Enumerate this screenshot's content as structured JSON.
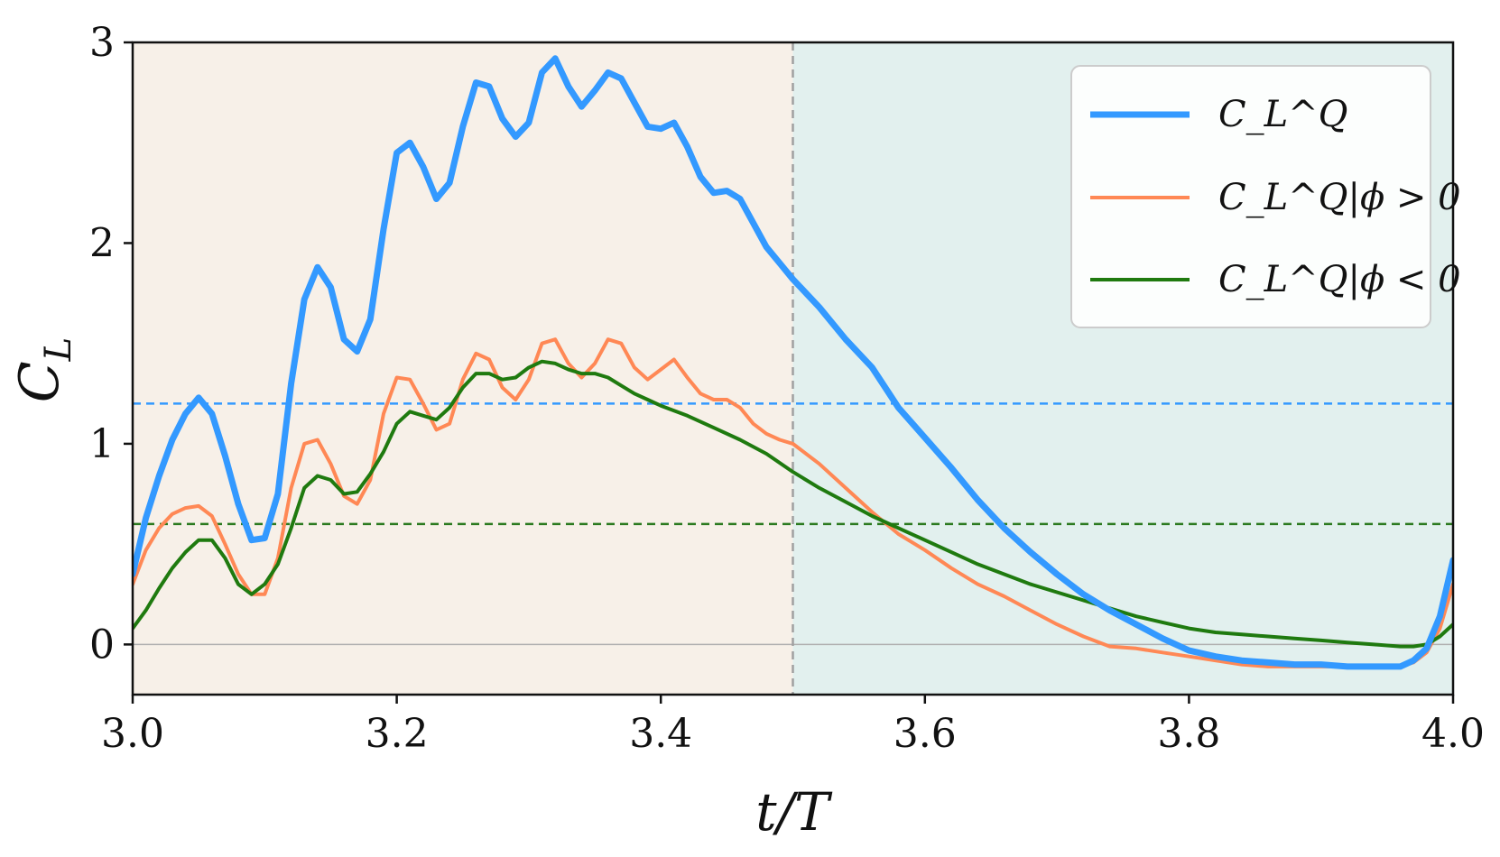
{
  "chart_data": {
    "type": "line",
    "xlabel": "t/T",
    "ylabel": "C_L",
    "xlim": [
      3.0,
      4.0
    ],
    "ylim": [
      -0.25,
      3.0
    ],
    "xticks": [
      3.0,
      3.2,
      3.4,
      3.6,
      3.8,
      4.0
    ],
    "xtick_labels": [
      "3.0",
      "3.2",
      "3.4",
      "3.6",
      "3.8",
      "4.0"
    ],
    "yticks": [
      0,
      1,
      2,
      3
    ],
    "ytick_labels": [
      "0",
      "1",
      "2",
      "3"
    ],
    "grid": false,
    "legend_position": "top-right",
    "shaded_regions": [
      {
        "x": [
          3.0,
          3.5
        ],
        "color": "#f7f0e8"
      },
      {
        "x": [
          3.5,
          4.0
        ],
        "color": "#e2f0ee"
      }
    ],
    "vertical_lines": [
      {
        "x": 3.5,
        "color": "#a0a0a0",
        "style": "dashed"
      }
    ],
    "horizontal_lines": [
      {
        "y": 1.2,
        "color": "#3399ff",
        "style": "dashed"
      },
      {
        "y": 0.6,
        "color": "#2b7a1f",
        "style": "dashed"
      },
      {
        "y": 0.0,
        "color": "#b0b0b0",
        "style": "solid"
      }
    ],
    "series": [
      {
        "name": "C_L^Q",
        "color": "#3399ff",
        "width": 7,
        "points": [
          [
            3.0,
            0.35
          ],
          [
            3.01,
            0.63
          ],
          [
            3.02,
            0.84
          ],
          [
            3.03,
            1.02
          ],
          [
            3.04,
            1.15
          ],
          [
            3.05,
            1.23
          ],
          [
            3.06,
            1.15
          ],
          [
            3.07,
            0.94
          ],
          [
            3.08,
            0.7
          ],
          [
            3.09,
            0.52
          ],
          [
            3.1,
            0.53
          ],
          [
            3.11,
            0.75
          ],
          [
            3.12,
            1.3
          ],
          [
            3.13,
            1.72
          ],
          [
            3.14,
            1.88
          ],
          [
            3.15,
            1.78
          ],
          [
            3.16,
            1.52
          ],
          [
            3.17,
            1.46
          ],
          [
            3.18,
            1.62
          ],
          [
            3.19,
            2.07
          ],
          [
            3.2,
            2.45
          ],
          [
            3.21,
            2.5
          ],
          [
            3.22,
            2.38
          ],
          [
            3.23,
            2.22
          ],
          [
            3.24,
            2.3
          ],
          [
            3.25,
            2.58
          ],
          [
            3.26,
            2.8
          ],
          [
            3.27,
            2.78
          ],
          [
            3.28,
            2.62
          ],
          [
            3.29,
            2.53
          ],
          [
            3.3,
            2.6
          ],
          [
            3.31,
            2.85
          ],
          [
            3.32,
            2.92
          ],
          [
            3.33,
            2.78
          ],
          [
            3.34,
            2.68
          ],
          [
            3.35,
            2.76
          ],
          [
            3.36,
            2.85
          ],
          [
            3.37,
            2.82
          ],
          [
            3.38,
            2.7
          ],
          [
            3.39,
            2.58
          ],
          [
            3.4,
            2.57
          ],
          [
            3.41,
            2.6
          ],
          [
            3.42,
            2.48
          ],
          [
            3.43,
            2.33
          ],
          [
            3.44,
            2.25
          ],
          [
            3.45,
            2.26
          ],
          [
            3.46,
            2.22
          ],
          [
            3.47,
            2.1
          ],
          [
            3.48,
            1.98
          ],
          [
            3.49,
            1.9
          ],
          [
            3.5,
            1.82
          ],
          [
            3.52,
            1.68
          ],
          [
            3.54,
            1.52
          ],
          [
            3.56,
            1.38
          ],
          [
            3.58,
            1.18
          ],
          [
            3.6,
            1.03
          ],
          [
            3.62,
            0.88
          ],
          [
            3.64,
            0.72
          ],
          [
            3.66,
            0.58
          ],
          [
            3.68,
            0.46
          ],
          [
            3.7,
            0.35
          ],
          [
            3.72,
            0.25
          ],
          [
            3.74,
            0.17
          ],
          [
            3.76,
            0.1
          ],
          [
            3.78,
            0.03
          ],
          [
            3.8,
            -0.03
          ],
          [
            3.82,
            -0.06
          ],
          [
            3.84,
            -0.08
          ],
          [
            3.86,
            -0.09
          ],
          [
            3.88,
            -0.1
          ],
          [
            3.9,
            -0.1
          ],
          [
            3.92,
            -0.11
          ],
          [
            3.94,
            -0.11
          ],
          [
            3.96,
            -0.11
          ],
          [
            3.97,
            -0.08
          ],
          [
            3.98,
            -0.02
          ],
          [
            3.99,
            0.14
          ],
          [
            4.0,
            0.42
          ]
        ]
      },
      {
        "name": "C_L^Q|ϕ > 0",
        "color": "#ff8855",
        "width": 4,
        "points": [
          [
            3.0,
            0.3
          ],
          [
            3.01,
            0.47
          ],
          [
            3.02,
            0.58
          ],
          [
            3.03,
            0.65
          ],
          [
            3.04,
            0.68
          ],
          [
            3.05,
            0.69
          ],
          [
            3.06,
            0.64
          ],
          [
            3.07,
            0.5
          ],
          [
            3.08,
            0.35
          ],
          [
            3.09,
            0.25
          ],
          [
            3.1,
            0.25
          ],
          [
            3.11,
            0.43
          ],
          [
            3.12,
            0.78
          ],
          [
            3.13,
            1.0
          ],
          [
            3.14,
            1.02
          ],
          [
            3.15,
            0.9
          ],
          [
            3.16,
            0.74
          ],
          [
            3.17,
            0.7
          ],
          [
            3.18,
            0.82
          ],
          [
            3.19,
            1.15
          ],
          [
            3.2,
            1.33
          ],
          [
            3.21,
            1.32
          ],
          [
            3.22,
            1.2
          ],
          [
            3.23,
            1.07
          ],
          [
            3.24,
            1.1
          ],
          [
            3.25,
            1.32
          ],
          [
            3.26,
            1.45
          ],
          [
            3.27,
            1.42
          ],
          [
            3.28,
            1.28
          ],
          [
            3.29,
            1.22
          ],
          [
            3.3,
            1.32
          ],
          [
            3.31,
            1.5
          ],
          [
            3.32,
            1.52
          ],
          [
            3.33,
            1.4
          ],
          [
            3.34,
            1.33
          ],
          [
            3.35,
            1.4
          ],
          [
            3.36,
            1.52
          ],
          [
            3.37,
            1.5
          ],
          [
            3.38,
            1.38
          ],
          [
            3.39,
            1.32
          ],
          [
            3.4,
            1.37
          ],
          [
            3.41,
            1.42
          ],
          [
            3.42,
            1.33
          ],
          [
            3.43,
            1.25
          ],
          [
            3.44,
            1.22
          ],
          [
            3.45,
            1.22
          ],
          [
            3.46,
            1.18
          ],
          [
            3.47,
            1.1
          ],
          [
            3.48,
            1.05
          ],
          [
            3.49,
            1.02
          ],
          [
            3.5,
            1.0
          ],
          [
            3.52,
            0.9
          ],
          [
            3.54,
            0.78
          ],
          [
            3.56,
            0.66
          ],
          [
            3.58,
            0.55
          ],
          [
            3.6,
            0.47
          ],
          [
            3.62,
            0.38
          ],
          [
            3.64,
            0.3
          ],
          [
            3.66,
            0.24
          ],
          [
            3.68,
            0.17
          ],
          [
            3.7,
            0.1
          ],
          [
            3.72,
            0.04
          ],
          [
            3.74,
            -0.01
          ],
          [
            3.76,
            -0.02
          ],
          [
            3.78,
            -0.04
          ],
          [
            3.8,
            -0.06
          ],
          [
            3.82,
            -0.08
          ],
          [
            3.84,
            -0.1
          ],
          [
            3.86,
            -0.11
          ],
          [
            3.88,
            -0.11
          ],
          [
            3.9,
            -0.11
          ],
          [
            3.92,
            -0.11
          ],
          [
            3.94,
            -0.11
          ],
          [
            3.96,
            -0.11
          ],
          [
            3.97,
            -0.09
          ],
          [
            3.98,
            -0.04
          ],
          [
            3.99,
            0.08
          ],
          [
            4.0,
            0.3
          ]
        ]
      },
      {
        "name": "C_L^Q|ϕ < 0",
        "color": "#1f7a0f",
        "width": 4,
        "points": [
          [
            3.0,
            0.08
          ],
          [
            3.01,
            0.17
          ],
          [
            3.02,
            0.28
          ],
          [
            3.03,
            0.38
          ],
          [
            3.04,
            0.46
          ],
          [
            3.05,
            0.52
          ],
          [
            3.06,
            0.52
          ],
          [
            3.07,
            0.43
          ],
          [
            3.08,
            0.3
          ],
          [
            3.09,
            0.25
          ],
          [
            3.1,
            0.3
          ],
          [
            3.11,
            0.4
          ],
          [
            3.12,
            0.58
          ],
          [
            3.13,
            0.78
          ],
          [
            3.14,
            0.84
          ],
          [
            3.15,
            0.82
          ],
          [
            3.16,
            0.75
          ],
          [
            3.17,
            0.76
          ],
          [
            3.18,
            0.85
          ],
          [
            3.19,
            0.96
          ],
          [
            3.2,
            1.1
          ],
          [
            3.21,
            1.16
          ],
          [
            3.22,
            1.14
          ],
          [
            3.23,
            1.12
          ],
          [
            3.24,
            1.18
          ],
          [
            3.25,
            1.28
          ],
          [
            3.26,
            1.35
          ],
          [
            3.27,
            1.35
          ],
          [
            3.28,
            1.32
          ],
          [
            3.29,
            1.33
          ],
          [
            3.3,
            1.38
          ],
          [
            3.31,
            1.41
          ],
          [
            3.32,
            1.4
          ],
          [
            3.33,
            1.37
          ],
          [
            3.34,
            1.35
          ],
          [
            3.35,
            1.35
          ],
          [
            3.36,
            1.33
          ],
          [
            3.37,
            1.29
          ],
          [
            3.38,
            1.25
          ],
          [
            3.39,
            1.22
          ],
          [
            3.4,
            1.19
          ],
          [
            3.42,
            1.14
          ],
          [
            3.44,
            1.08
          ],
          [
            3.46,
            1.02
          ],
          [
            3.48,
            0.95
          ],
          [
            3.5,
            0.86
          ],
          [
            3.52,
            0.78
          ],
          [
            3.54,
            0.71
          ],
          [
            3.56,
            0.64
          ],
          [
            3.58,
            0.58
          ],
          [
            3.6,
            0.52
          ],
          [
            3.62,
            0.46
          ],
          [
            3.64,
            0.4
          ],
          [
            3.66,
            0.35
          ],
          [
            3.68,
            0.3
          ],
          [
            3.7,
            0.26
          ],
          [
            3.72,
            0.22
          ],
          [
            3.74,
            0.18
          ],
          [
            3.76,
            0.14
          ],
          [
            3.78,
            0.11
          ],
          [
            3.8,
            0.08
          ],
          [
            3.82,
            0.06
          ],
          [
            3.84,
            0.05
          ],
          [
            3.86,
            0.04
          ],
          [
            3.88,
            0.03
          ],
          [
            3.9,
            0.02
          ],
          [
            3.92,
            0.01
          ],
          [
            3.94,
            0.0
          ],
          [
            3.96,
            -0.01
          ],
          [
            3.97,
            -0.01
          ],
          [
            3.98,
            0.0
          ],
          [
            3.99,
            0.04
          ],
          [
            4.0,
            0.1
          ]
        ]
      }
    ]
  }
}
